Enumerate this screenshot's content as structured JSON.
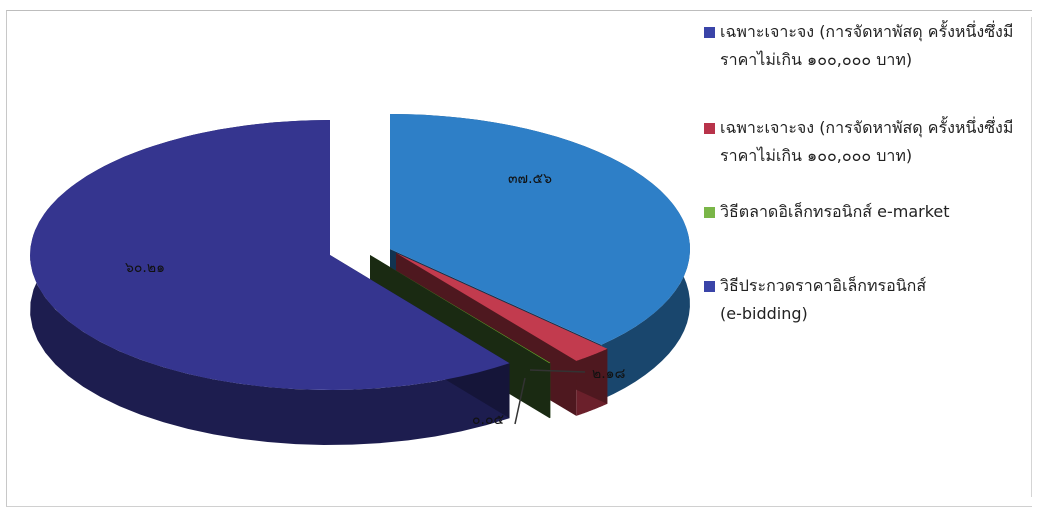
{
  "chart_data": {
    "type": "pie",
    "title": "",
    "slices": [
      {
        "label": "เฉพาะเจาะจง (การจัดหาพัสดุ ครั้งหนึ่งซึ่งมีราคาไม่เกิน ๑๐๐,๐๐๐ บาท)",
        "value": 37.56,
        "value_label": "๓๗.๕๖",
        "color": "#2e7fc7"
      },
      {
        "label": "เฉพาะเจาะจง (การจัดหาพัสดุ ครั้งหนึ่งซึ่งมีราคาไม่เกิน ๑๐๐,๐๐๐ บาท)",
        "value": 2.18,
        "value_label": "๒.๑๘",
        "color": "#c23b4e"
      },
      {
        "label": "วิธีตลาดอิเล็กทรอนิกส์ e-market",
        "value": 0.05,
        "value_label": "๐.๐๕",
        "color": "#6aab2e"
      },
      {
        "label": "วิธีประกวดราคาอิเล็กทรอนิกส์ (e-bidding)",
        "value": 60.21,
        "value_label": "๖๐.๒๑",
        "color": "#35358f"
      }
    ],
    "legend_position": "right"
  },
  "legend": [
    {
      "line1": "เฉพาะเจาะจง (การจัดหาพัสดุ ครั้งหนึ่งซึ่งมี",
      "line2": "ราคาไม่เกิน ๑๐๐,๐๐๐ บาท)",
      "color": "#3a44a8"
    },
    {
      "line1": "เฉพาะเจาะจง (การจัดหาพัสดุ ครั้งหนึ่งซึ่งมี",
      "line2": "ราคาไม่เกิน ๑๐๐,๐๐๐ บาท)",
      "color": "#b8334a"
    },
    {
      "line1": "วิธีตลาดอิเล็กทรอนิกส์ e-market",
      "line2": "",
      "color": "#7ab648"
    },
    {
      "line1": "วิธีประกวดราคาอิเล็กทรอนิกส์",
      "line2": "(e-bidding)",
      "color": "#3a44a8"
    }
  ]
}
